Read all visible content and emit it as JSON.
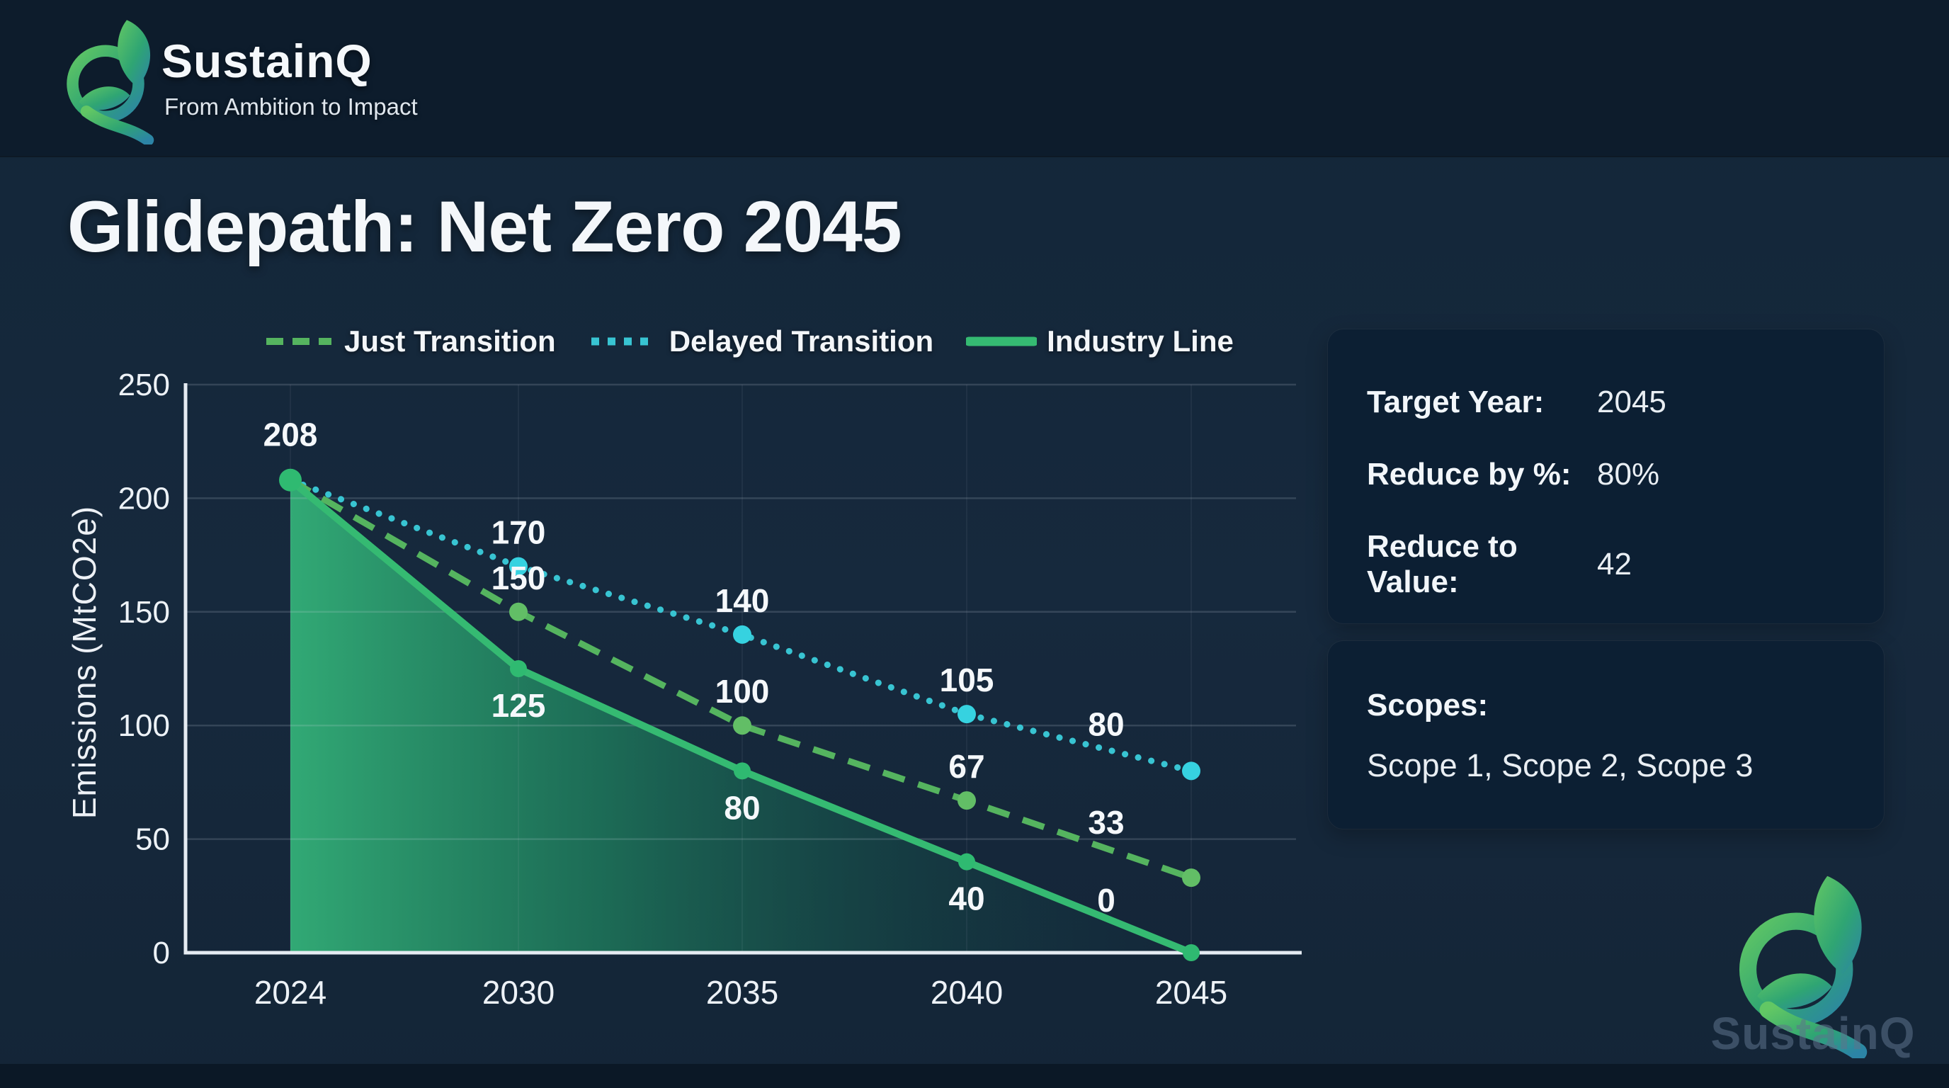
{
  "brand": {
    "name": "SustainQ",
    "tagline": "From Ambition to Impact"
  },
  "page": {
    "title": "Glidepath: Net Zero 2045"
  },
  "chart_data": {
    "type": "line",
    "categories": [
      "2024",
      "2030",
      "2035",
      "2040",
      "2045"
    ],
    "series": [
      {
        "name": "Just Transition",
        "style": "dashed",
        "color": "#55b45f",
        "marker_color": "#62be66",
        "values": [
          208,
          150,
          100,
          67,
          33
        ]
      },
      {
        "name": "Delayed Transition",
        "style": "dotted",
        "color": "#38c4d2",
        "marker_color": "#36d2e0",
        "values": [
          208,
          170,
          140,
          105,
          80
        ]
      },
      {
        "name": "Industry Line",
        "style": "solid",
        "color": "#35ba72",
        "marker_color": "#2fba71",
        "values": [
          208,
          125,
          80,
          40,
          0
        ],
        "area": true
      }
    ],
    "title": "Glidepath: Net Zero 2045",
    "xlabel": "",
    "ylabel": "Emissions (MtCO2e)",
    "ylim": [
      0,
      250
    ],
    "yticks": [
      0,
      50,
      100,
      150,
      200,
      250
    ],
    "grid": true,
    "legend_position": "top"
  },
  "info_panel": {
    "rows": [
      {
        "label": "Target Year:",
        "value": "2045"
      },
      {
        "label": "Reduce by %:",
        "value": "80%"
      },
      {
        "label": "Reduce to Value:",
        "value": "42"
      }
    ]
  },
  "scopes_panel": {
    "title": "Scopes:",
    "value": "Scope 1, Scope 2, Scope 3"
  },
  "watermark": {
    "text": "SustainQ"
  },
  "colors": {
    "background": "#16293d",
    "header": "#0d1c2c",
    "panel": "#0c1f33",
    "axis": "#e5ebf2",
    "grid": "#d8e2ee",
    "area_top": "#33b078",
    "area_fade": "#11424a",
    "text": "#f2f6fa"
  }
}
